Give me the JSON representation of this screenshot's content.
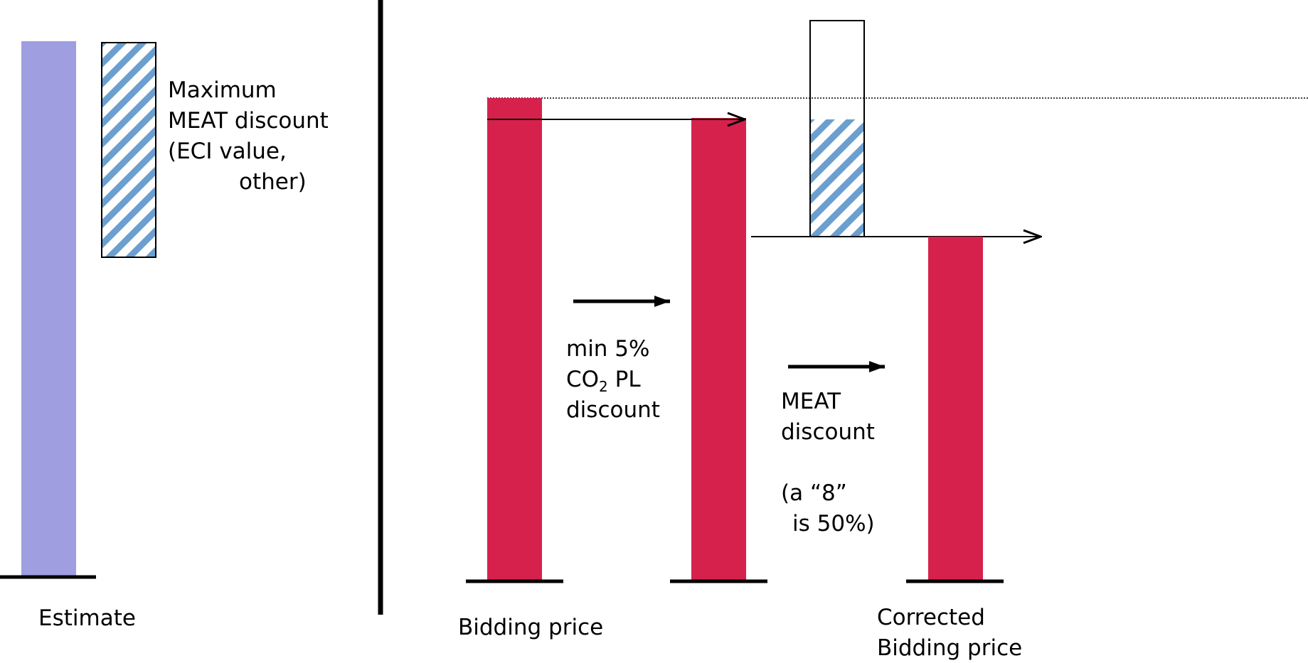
{
  "colors": {
    "estimate_bar": "#9f9ee0",
    "price_bar": "#d6214c",
    "hatch_stripe": "#6b9fcf",
    "ink": "#000000"
  },
  "left_panel": {
    "estimate_label": "Estimate",
    "max_discount_label": {
      "line1": "Maximum",
      "line2": "MEAT discount",
      "line3": "(ECI value,",
      "line4": "other)"
    }
  },
  "right_panel": {
    "bidding_price_label": "Bidding price",
    "co2_discount_label": {
      "line1": "min 5%",
      "line2_main": "CO",
      "line2_sub": "2",
      "line2_end": " PL",
      "line3": "discount"
    },
    "meat_discount_label": {
      "line1": "MEAT",
      "line2": "discount",
      "line3": "(a “8”",
      "line4": "is 50%)"
    },
    "corrected_price_label": {
      "line1": "Corrected",
      "line2": "Bidding price"
    }
  }
}
